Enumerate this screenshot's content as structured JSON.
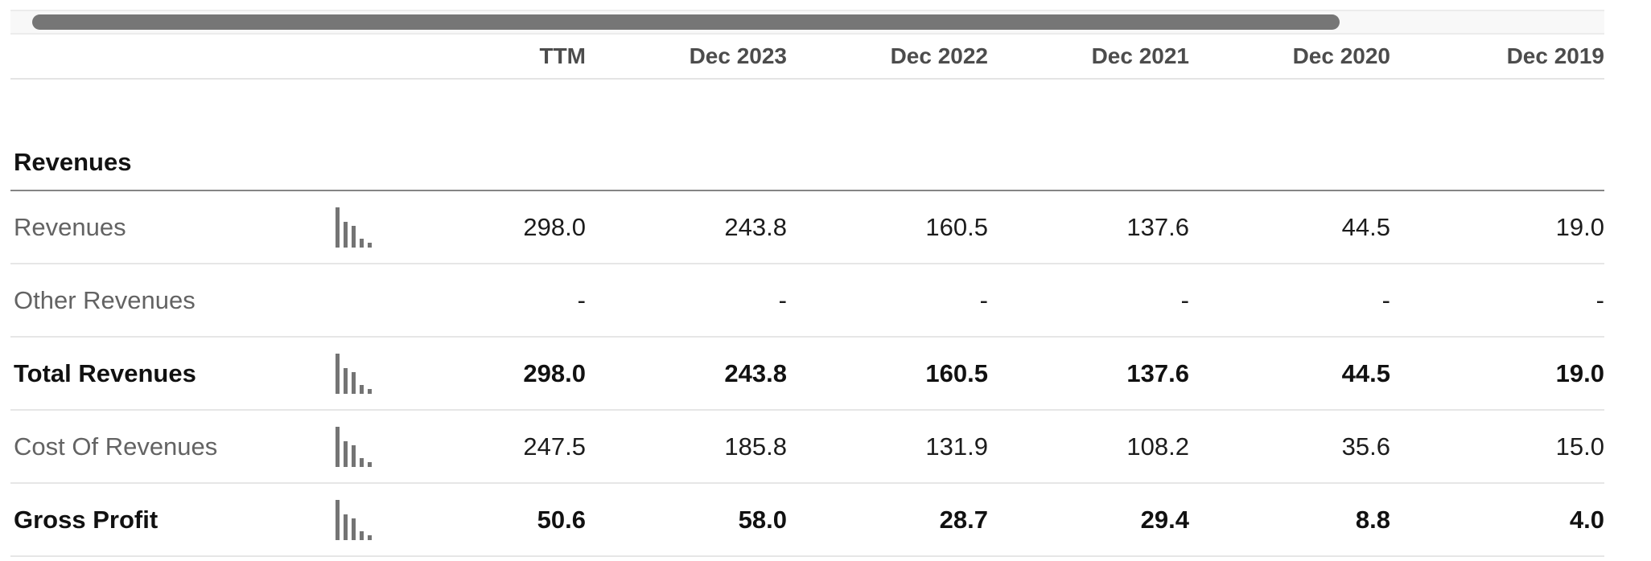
{
  "scrollbar": {
    "orientation": "horizontal",
    "thumb_color": "#767676",
    "track_color": "#f8f8f8"
  },
  "table": {
    "columns": [
      "TTM",
      "Dec 2023",
      "Dec 2022",
      "Dec 2021",
      "Dec 2020",
      "Dec 2019"
    ],
    "section_title": "Revenues",
    "rows": [
      {
        "label": "Revenues",
        "style": "normal",
        "has_chart_icon": true,
        "values": [
          "298.0",
          "243.8",
          "160.5",
          "137.6",
          "44.5",
          "19.0"
        ]
      },
      {
        "label": "Other Revenues",
        "style": "normal",
        "has_chart_icon": false,
        "values": [
          "-",
          "-",
          "-",
          "-",
          "-",
          "-"
        ]
      },
      {
        "label": "Total Revenues",
        "style": "bold",
        "has_chart_icon": true,
        "values": [
          "298.0",
          "243.8",
          "160.5",
          "137.6",
          "44.5",
          "19.0"
        ]
      },
      {
        "label": "Cost Of Revenues",
        "style": "normal",
        "has_chart_icon": true,
        "values": [
          "247.5",
          "185.8",
          "131.9",
          "108.2",
          "35.6",
          "15.0"
        ]
      },
      {
        "label": "Gross Profit",
        "style": "bold",
        "has_chart_icon": true,
        "values": [
          "50.6",
          "58.0",
          "28.7",
          "29.4",
          "8.8",
          "4.0"
        ]
      }
    ]
  },
  "colors": {
    "header_text": "#4c4c4c",
    "section_title_text": "#121212",
    "row_label_text": "#636363",
    "bold_text": "#111111",
    "value_text": "#1c1c1c",
    "section_divider": "#858585",
    "row_divider": "#e6e6e6",
    "icon_bar": "#747474"
  }
}
